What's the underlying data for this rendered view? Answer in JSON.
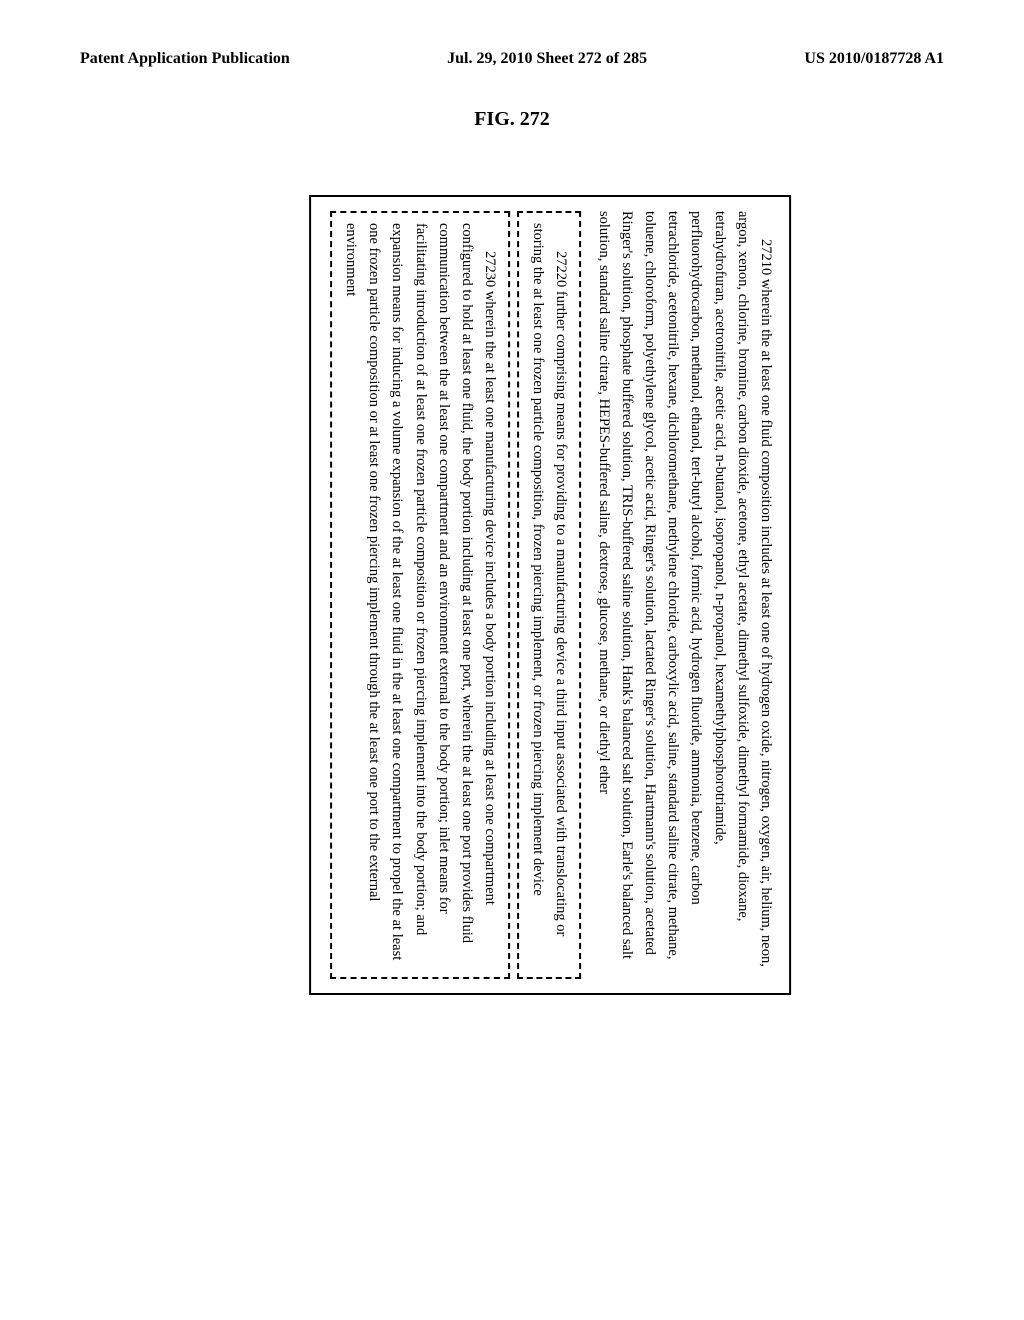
{
  "header": {
    "left": "Patent Application Publication",
    "center": "Jul. 29, 2010  Sheet 272 of 285",
    "right": "US 2010/0187728 A1"
  },
  "figure_label": "FIG. 272",
  "paragraphs": {
    "p1": "27210 wherein the at least one fluid composition includes at least one of hydrogen oxide, nitrogen, oxygen, air, helium, neon, argon, xenon, chlorine, bromine, carbon dioxide, acetone, ethyl acetate, dimethyl sulfoxide, dimethyl formamide, dioxane, tetrahydrofuran, acetronitrile, acetic acid, n-butanol, isopropanol, n-propanol, hexamethylphosphorotriamide, perfluorohydrocarbon, methanol, ethanol, tert-butyl alcohol, formic acid, hydrogen fluoride, ammonia, benzene, carbon tetrachloride, acetonitrile, hexane, dichloromethane, methylene chloride, carboxylic acid, saline, standard saline citrate, methane, toluene, chloroform, polyethylene glycol, acetic acid, Ringer's solution, lactated Ringer's solution, Hartmann's solution, acetated Ringer's solution, phosphate buffered solution, TRIS-buffered saline solution, Hank's balanced salt solution, Earle's balanced salt solution, standard saline citrate, HEPES-buffered saline, dextrose, glucose, methane, or diethyl ether",
    "p2": "27220 further comprising means for providing to a manufacturing device a third input associated with translocating or storing the at least one frozen particle composition, frozen piercing implement, or frozen piercing implement device",
    "p3": "27230 wherein the at least one manufacturing device includes a body portion including at least one compartment configured to hold at least one fluid, the body portion including at least one port, wherein the at least one port provides fluid communication between the at least one compartment and an environment external to the body portion; inlet means for facilitating introduction of at least one frozen particle composition or frozen piercing implement into the body portion; and expansion means for inducing a volume expansion of the at least one fluid in the at least one compartment to propel the at least one frozen particle composition or at least one frozen piercing implement through the at least one port to the external environment"
  }
}
